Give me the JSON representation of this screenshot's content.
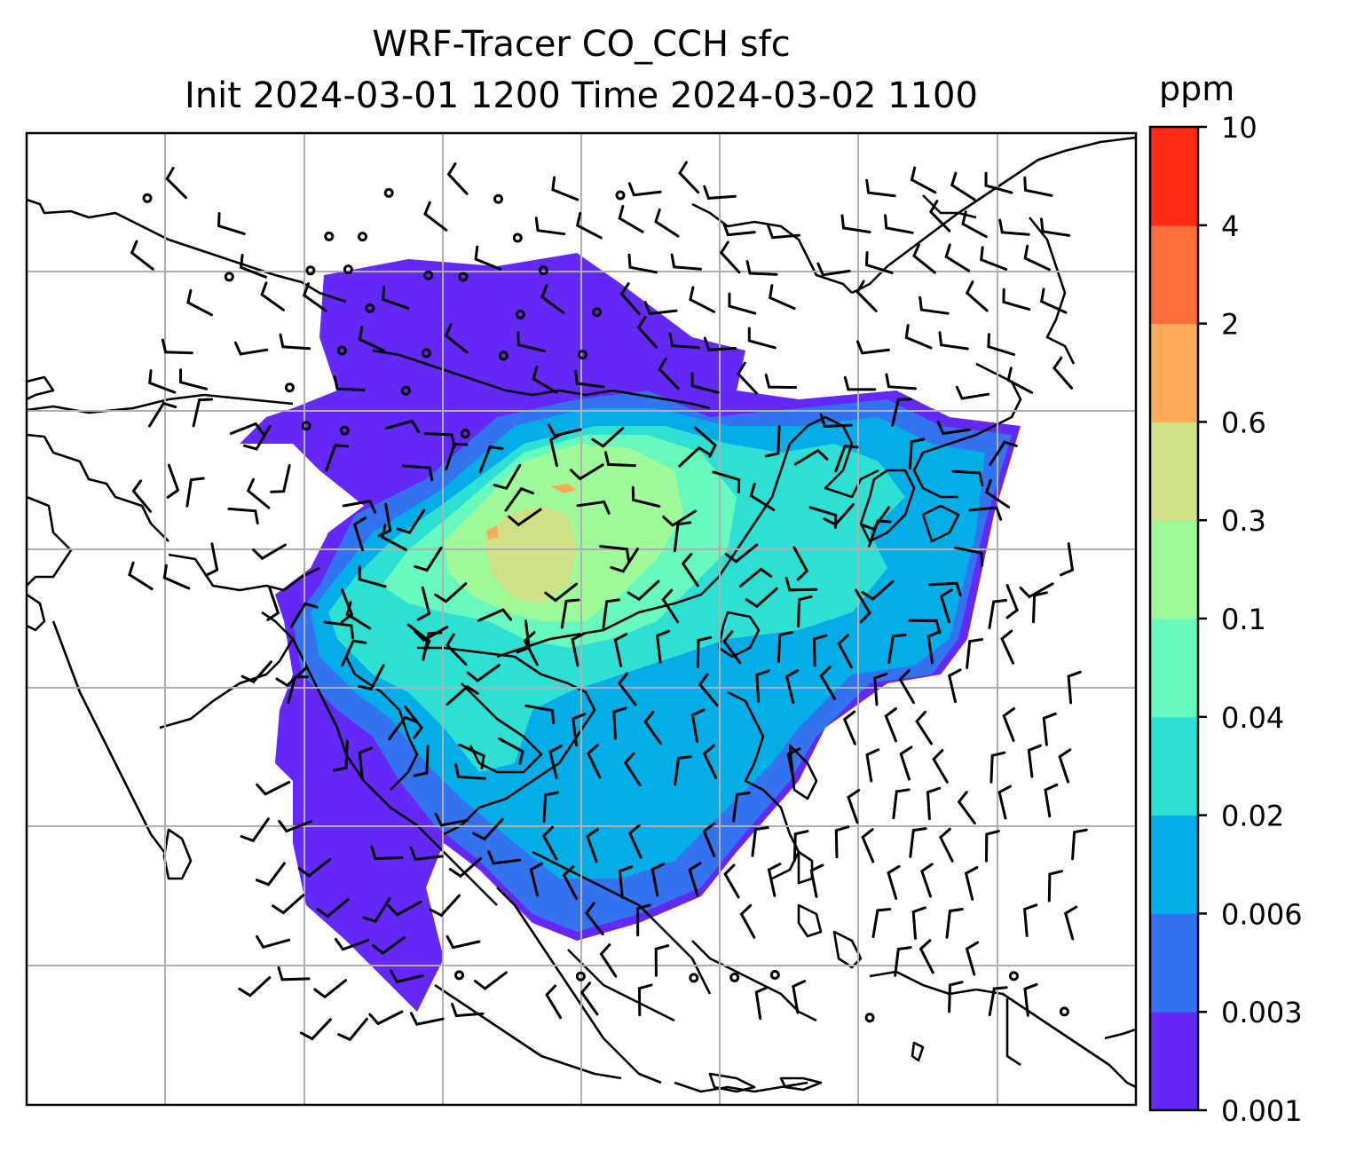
{
  "title": {
    "line1": "WRF-Tracer CO_CCH sfc",
    "line2": "Init 2024-03-01 1200 Time 2024-03-02 1100"
  },
  "colorbar": {
    "unit": "ppm",
    "levels": [
      "0.001",
      "0.003",
      "0.006",
      "0.02",
      "0.04",
      "0.1",
      "0.3",
      "0.6",
      "2",
      "4",
      "10"
    ],
    "colors": [
      "#6428f8",
      "#3373f0",
      "#03aee8",
      "#2ee0d4",
      "#67f9bd",
      "#9ffb99",
      "#cfe086",
      "#ffab5a",
      "#ff6e3c",
      "#ff2a18"
    ]
  },
  "map": {
    "gridlines": true,
    "coastlines": true,
    "wind_barbs": true
  }
}
